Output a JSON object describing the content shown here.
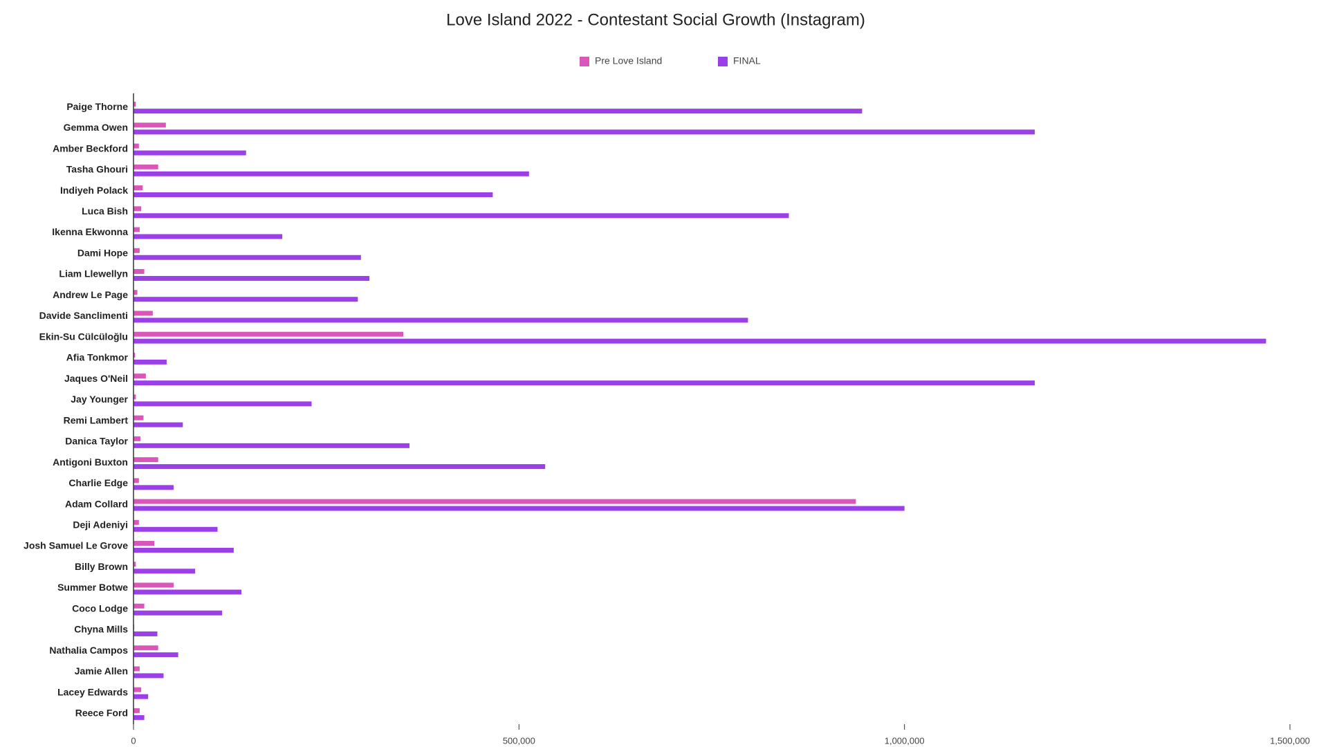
{
  "chart_data": {
    "type": "hbar",
    "title": "Love Island 2022 - Contestant Social Growth (Instagram)",
    "categories": [
      "Paige Thorne",
      "Gemma Owen",
      "Amber Beckford",
      "Tasha Ghouri",
      "Indiyeh Polack",
      "Luca Bish",
      "Ikenna Ekwonna",
      "Dami Hope",
      "Liam Llewellyn",
      "Andrew Le Page",
      "Davide Sanclimenti",
      "Ekin-Su Cülcüloğlu",
      "Afia Tonkmor",
      "Jaques O'Neil",
      "Jay Younger",
      "Remi Lambert",
      "Danica Taylor",
      "Antigoni Buxton",
      "Charlie Edge",
      "Adam Collard",
      "Deji Adeniyi",
      "Josh Samuel Le Grove",
      "Billy Brown",
      "Summer Botwe",
      "Coco Lodge",
      "Chyna Mills",
      "Nathalia Campos",
      "Jamie Allen",
      "Lacey Edwards",
      "Reece Ford"
    ],
    "series": [
      {
        "name": "Pre Love Island",
        "color": "#d957b8",
        "values": [
          3000,
          42000,
          7000,
          32000,
          12000,
          10000,
          8000,
          8000,
          14000,
          5000,
          25000,
          350000,
          2000,
          16000,
          3000,
          13000,
          9000,
          32000,
          7000,
          937000,
          7000,
          27000,
          3000,
          52000,
          14000,
          1000,
          32000,
          8000,
          10000,
          8000
        ]
      },
      {
        "name": "FINAL",
        "color": "#9b40e8",
        "values": [
          945000,
          1169000,
          146000,
          513000,
          466000,
          850000,
          193000,
          295000,
          306000,
          291000,
          797000,
          1469000,
          43000,
          1169000,
          231000,
          64000,
          358000,
          534000,
          52000,
          1000000,
          109000,
          130000,
          80000,
          140000,
          115000,
          31000,
          58000,
          39000,
          19000,
          14000
        ]
      }
    ],
    "xlim": [
      0,
      1500000
    ],
    "xticks": [
      0,
      {
        "value": 500000,
        "label": "500,000"
      },
      {
        "value": 1000000,
        "label": "1,000,000"
      },
      {
        "value": 1500000,
        "label": "1,500,000"
      }
    ],
    "legend": "top",
    "grid": false
  }
}
